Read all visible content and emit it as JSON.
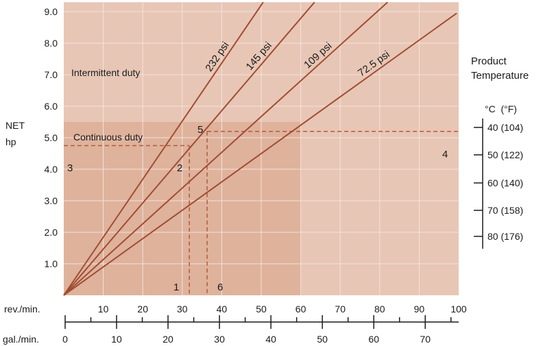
{
  "chart_data": {
    "type": "line",
    "x_axis_primary": {
      "label": "rev./min.",
      "ticks": [
        "10",
        "20",
        "30",
        "40",
        "50",
        "60",
        "70",
        "80",
        "90",
        "100"
      ],
      "range": [
        0,
        100
      ]
    },
    "x_axis_secondary": {
      "label": "gal./min.",
      "ticks": [
        "0",
        "10",
        "20",
        "30",
        "40",
        "50",
        "60",
        "70"
      ]
    },
    "y_axis": {
      "label_line1": "NET",
      "label_line2": "hp",
      "ticks": [
        "1.0",
        "2.0",
        "3.0",
        "4.0",
        "5.0",
        "6.0",
        "7.0",
        "8.0",
        "9.0"
      ],
      "range": [
        0,
        9.3
      ]
    },
    "series": [
      {
        "name": "232 psi",
        "x": [
          0,
          50.5
        ],
        "y": [
          0,
          9.3
        ]
      },
      {
        "name": "145 psi",
        "x": [
          0,
          63.5
        ],
        "y": [
          0,
          9.3
        ]
      },
      {
        "name": "109 psi",
        "x": [
          0,
          82
        ],
        "y": [
          0,
          9.3
        ]
      },
      {
        "name": "72.5 psi",
        "x": [
          0,
          99.5
        ],
        "y": [
          0,
          8.95
        ]
      }
    ],
    "regions": {
      "intermittent": {
        "label": "Intermittent duty",
        "x": [
          0,
          100
        ],
        "y": [
          0,
          9.3
        ]
      },
      "continuous": {
        "label": "Continuous duty",
        "x": [
          0,
          60
        ],
        "y": [
          0,
          5.5
        ]
      }
    },
    "example_path": {
      "horizontal_left_y": 4.75,
      "vertical_1_x": 31.8,
      "vertical_6_x": 36.3,
      "horizontal_right_y": 5.2
    },
    "markers": [
      "1",
      "2",
      "3",
      "4",
      "5",
      "6"
    ],
    "product_temperature": {
      "title_line1": "Product",
      "title_line2": "Temperature",
      "unit_header": "°C  (°F)",
      "levels": [
        "40 (104)",
        "50 (122)",
        "60 (140)",
        "70 (158)",
        "80 (176)"
      ]
    },
    "colors": {
      "outer_region": "#e8c6b5",
      "inner_region": "#dfb29c",
      "lines": "#a04d33",
      "dashed": "#b25a3c",
      "gridlines": "#f3e3da"
    }
  }
}
